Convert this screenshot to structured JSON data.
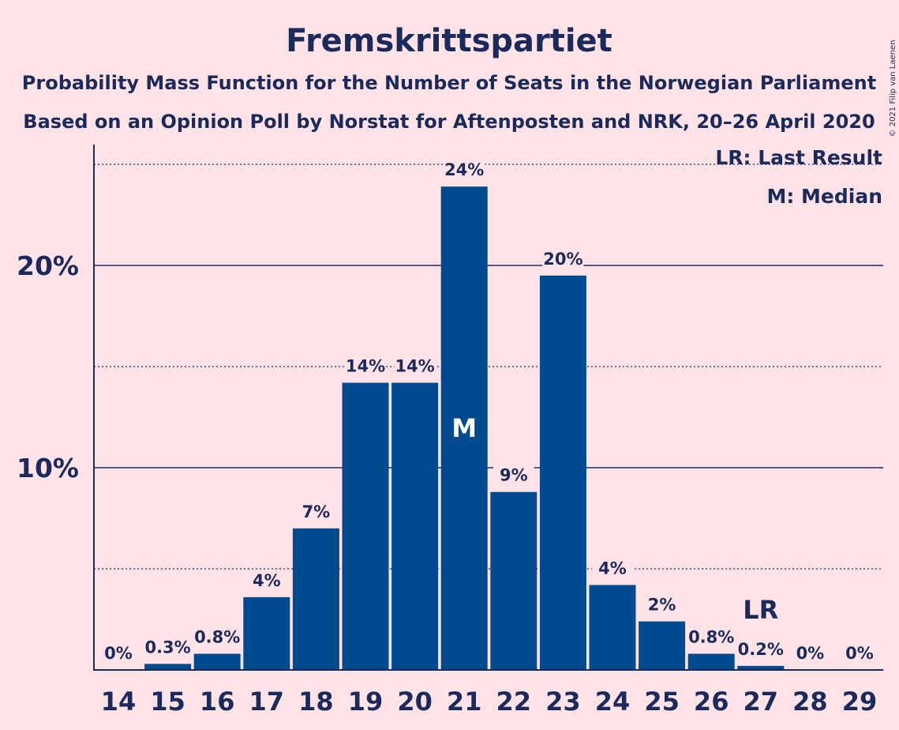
{
  "chart_data": {
    "type": "bar",
    "title": "Fremskrittspartiet",
    "subtitle_lines": [
      "Probability Mass Function for the Number of Seats in the Norwegian Parliament",
      "Based on an Opinion Poll by Norstat for Aftenposten and NRK, 20–26 April 2020"
    ],
    "categories": [
      "14",
      "15",
      "16",
      "17",
      "18",
      "19",
      "20",
      "21",
      "22",
      "23",
      "24",
      "25",
      "26",
      "27",
      "28",
      "29"
    ],
    "values": [
      0,
      0.3,
      0.8,
      3.6,
      7.0,
      14.2,
      14.2,
      23.9,
      8.8,
      19.5,
      4.2,
      2.4,
      0.8,
      0.2,
      0,
      0
    ],
    "data_labels": [
      "0%",
      "0.3%",
      "0.8%",
      "4%",
      "7%",
      "14%",
      "14%",
      "24%",
      "9%",
      "20%",
      "4%",
      "2%",
      "0.8%",
      "0.2%",
      "0%",
      "0%"
    ],
    "ylim": [
      0,
      26
    ],
    "yticks": [
      {
        "value": 10,
        "label": "10%"
      },
      {
        "value": 20,
        "label": "20%"
      }
    ],
    "minor_gridlines": [
      5,
      15,
      25
    ],
    "markers": [
      {
        "category": "21",
        "text": "M",
        "placement": "inside"
      },
      {
        "category": "27",
        "text": "LR",
        "placement": "above"
      }
    ],
    "legend": {
      "position": "top-right",
      "entries": [
        "LR: Last Result",
        "M: Median"
      ]
    },
    "colors": {
      "bar": "#004b8f",
      "text": "#1a2a5c",
      "background": "#ffe3e6",
      "marker_inside": "#ffffff"
    }
  },
  "copyright": "© 2021 Filip van Laenen"
}
